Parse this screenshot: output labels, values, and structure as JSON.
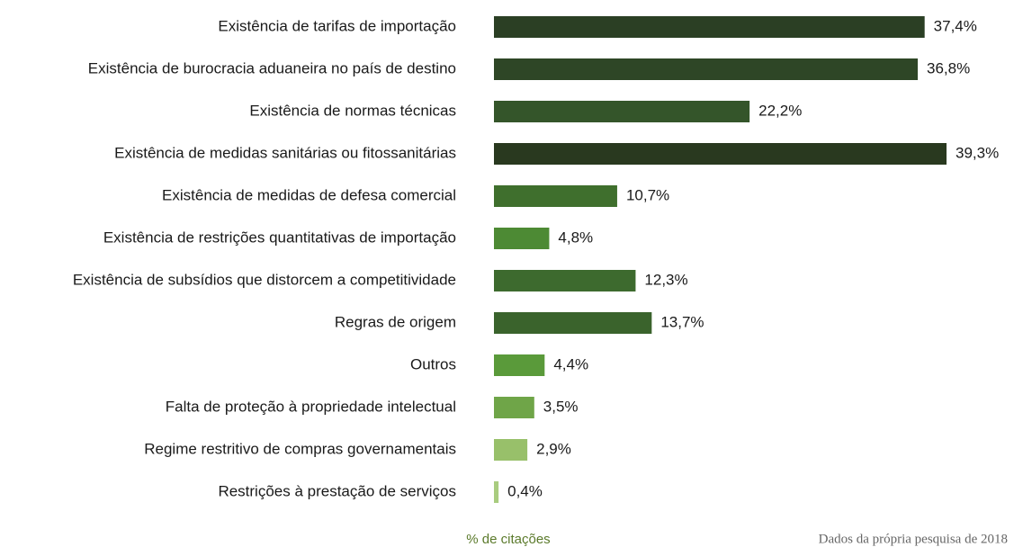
{
  "chart_data": {
    "type": "bar",
    "orientation": "horizontal",
    "categories": [
      "Existência de tarifas de importação",
      "Existência de burocracia aduaneira no país de destino",
      "Existência de normas técnicas",
      "Existência de medidas sanitárias ou fitossanitárias",
      "Existência de medidas de defesa comercial",
      "Existência de restrições quantitativas de importação",
      "Existência de subsídios que distorcem a competitividade",
      "Regras de origem",
      "Outros",
      "Falta de proteção à propriedade intelectual",
      "Regime restritivo de compras governamentais",
      "Restrições à prestação de serviços"
    ],
    "values": [
      37.4,
      36.8,
      22.2,
      39.3,
      10.7,
      4.8,
      12.3,
      13.7,
      4.4,
      3.5,
      2.9,
      0.4
    ],
    "value_labels": [
      "37,4%",
      "36,8%",
      "22,2%",
      "39,3%",
      "10,7%",
      "4,8%",
      "12,3%",
      "13,7%",
      "4,4%",
      "3,5%",
      "2,9%",
      "0,4%"
    ],
    "colors": [
      "#2b3f24",
      "#2e4626",
      "#34552a",
      "#29391f",
      "#3f6f2d",
      "#4d8a34",
      "#3d6a2e",
      "#3a632c",
      "#5a9a3a",
      "#6fa548",
      "#98c06a",
      "#a9cc7f"
    ],
    "xlabel": "% de citações",
    "source": "Dados da própria pesquisa de 2018"
  }
}
